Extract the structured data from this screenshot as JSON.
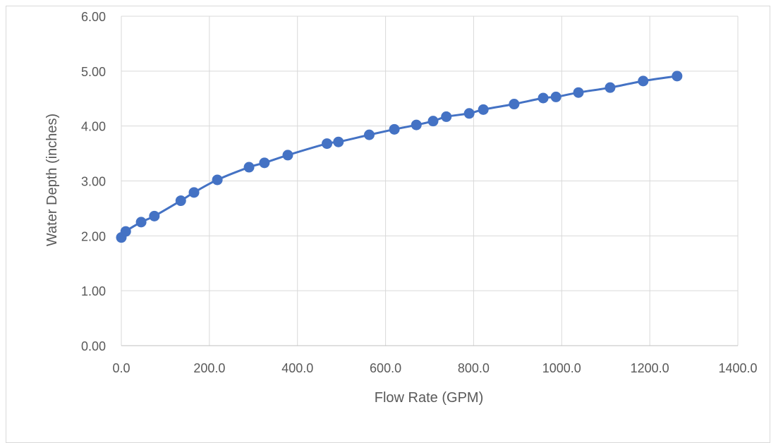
{
  "chart_data": {
    "type": "scatter",
    "title": "",
    "xlabel": "Flow Rate (GPM)",
    "ylabel": "Water Depth (inches)",
    "xlim": [
      0,
      1400
    ],
    "ylim": [
      0,
      6
    ],
    "x_ticks": [
      "0.0",
      "200.0",
      "400.0",
      "600.0",
      "800.0",
      "1000.0",
      "1200.0",
      "1400.0"
    ],
    "y_ticks": [
      "0.00",
      "1.00",
      "2.00",
      "3.00",
      "4.00",
      "5.00",
      "6.00"
    ],
    "grid": true,
    "legend": "none",
    "color": "#4472c4",
    "series": [
      {
        "x": [
          0,
          10,
          45,
          75,
          135,
          165,
          218,
          290,
          325,
          378,
          467,
          493,
          563,
          620,
          670,
          708,
          738,
          790,
          822,
          892,
          958,
          987,
          1038,
          1110,
          1185,
          1262
        ],
        "y": [
          1.97,
          2.08,
          2.25,
          2.36,
          2.64,
          2.79,
          3.02,
          3.25,
          3.33,
          3.47,
          3.68,
          3.71,
          3.84,
          3.94,
          4.02,
          4.09,
          4.17,
          4.23,
          4.3,
          4.4,
          4.51,
          4.53,
          4.61,
          4.7,
          4.82,
          4.91
        ]
      }
    ]
  }
}
